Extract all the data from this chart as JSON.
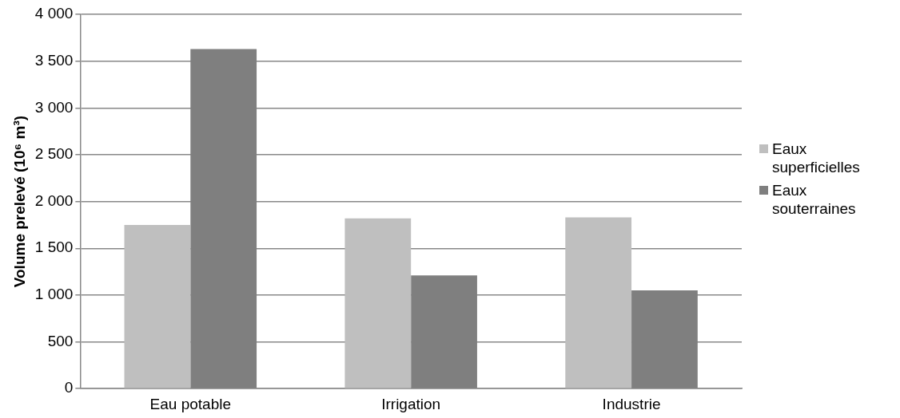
{
  "chart_data": {
    "type": "bar",
    "ylabel": "Volume prelevé (10⁶ m³)",
    "categories": [
      "Eau potable",
      "Irrigation",
      "Industrie"
    ],
    "series": [
      {
        "name": "Eaux superficielles",
        "color": "#bfbfbf",
        "values": [
          1750,
          1820,
          1830
        ]
      },
      {
        "name": "Eaux souterraines",
        "color": "#7f7f7f",
        "values": [
          3630,
          1210,
          1050
        ]
      }
    ],
    "ylim": [
      0,
      4000
    ],
    "yticks": [
      {
        "value": 0,
        "label": "0"
      },
      {
        "value": 500,
        "label": "500"
      },
      {
        "value": 1000,
        "label": "1 000"
      },
      {
        "value": 1500,
        "label": "1 500"
      },
      {
        "value": 2000,
        "label": "2 000"
      },
      {
        "value": 2500,
        "label": "2 500"
      },
      {
        "value": 3000,
        "label": "3 000"
      },
      {
        "value": 3500,
        "label": "3 500"
      },
      {
        "value": 4000,
        "label": "4 000"
      }
    ],
    "grid": "y",
    "legend": "right"
  }
}
